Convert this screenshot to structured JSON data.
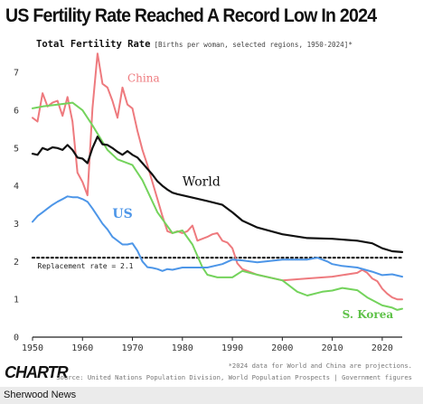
{
  "header": {
    "title": "US Fertility Rate Reached A Record Low In 2024",
    "subtitle": "Total Fertility Rate",
    "subtitle_detail": "[Births per woman, selected regions, 1950-2024]*"
  },
  "footer": {
    "logo": "CHARTR",
    "footnote": "*2024 data for World and China are projections.",
    "source": "Source: United Nations Population Division, World Population Prospects | Government figures",
    "publisher": "Sherwood News"
  },
  "chart_data": {
    "type": "line",
    "title": "US Fertility Rate Reached A Record Low In 2024",
    "xlabel": "",
    "ylabel": "",
    "xlim": [
      1950,
      2024
    ],
    "ylim": [
      0,
      7.6
    ],
    "x_ticks": [
      1950,
      1960,
      1970,
      1980,
      1990,
      2000,
      2010,
      2020
    ],
    "y_ticks": [
      0,
      1,
      2,
      3,
      4,
      5,
      6,
      7
    ],
    "grid": false,
    "reference_line": {
      "label": "Replacement rate = 2.1",
      "value": 2.1
    },
    "series": [
      {
        "name": "China",
        "color": "#ee7a7e",
        "x": [
          1950,
          1951,
          1952,
          1953,
          1954,
          1955,
          1956,
          1957,
          1958,
          1959,
          1960,
          1961,
          1962,
          1963,
          1964,
          1965,
          1966,
          1967,
          1968,
          1969,
          1970,
          1971,
          1972,
          1973,
          1974,
          1975,
          1976,
          1977,
          1978,
          1979,
          1980,
          1981,
          1982,
          1983,
          1984,
          1985,
          1986,
          1987,
          1988,
          1989,
          1990,
          1991,
          1992,
          1993,
          1994,
          1995,
          2000,
          2005,
          2010,
          2015,
          2016,
          2017,
          2018,
          2019,
          2020,
          2021,
          2022,
          2023,
          2024
        ],
        "values": [
          5.8,
          5.7,
          6.45,
          6.1,
          6.2,
          6.25,
          5.85,
          6.35,
          5.7,
          4.35,
          4.1,
          3.75,
          6.05,
          7.5,
          6.7,
          6.6,
          6.25,
          5.8,
          6.6,
          6.15,
          6.05,
          5.45,
          4.95,
          4.55,
          4.1,
          3.65,
          3.2,
          2.8,
          2.75,
          2.8,
          2.75,
          2.8,
          2.95,
          2.55,
          2.6,
          2.65,
          2.72,
          2.75,
          2.55,
          2.5,
          2.35,
          1.95,
          1.8,
          1.75,
          1.7,
          1.65,
          1.5,
          1.55,
          1.6,
          1.7,
          1.78,
          1.7,
          1.55,
          1.48,
          1.28,
          1.15,
          1.05,
          1.0,
          1.0
        ]
      },
      {
        "name": "World",
        "color": "#111111",
        "x": [
          1950,
          1951,
          1952,
          1953,
          1954,
          1955,
          1956,
          1957,
          1958,
          1959,
          1960,
          1961,
          1962,
          1963,
          1964,
          1965,
          1966,
          1967,
          1968,
          1969,
          1970,
          1971,
          1972,
          1973,
          1974,
          1975,
          1976,
          1977,
          1978,
          1979,
          1980,
          1985,
          1988,
          1990,
          1992,
          1995,
          2000,
          2005,
          2010,
          2015,
          2018,
          2020,
          2022,
          2024
        ],
        "values": [
          4.85,
          4.82,
          5.0,
          4.95,
          5.02,
          5.0,
          4.95,
          5.08,
          4.95,
          4.75,
          4.72,
          4.6,
          5.0,
          5.3,
          5.1,
          5.08,
          5.0,
          4.9,
          4.82,
          4.92,
          4.82,
          4.75,
          4.6,
          4.45,
          4.3,
          4.12,
          4.0,
          3.9,
          3.82,
          3.78,
          3.75,
          3.6,
          3.5,
          3.3,
          3.08,
          2.9,
          2.72,
          2.62,
          2.6,
          2.55,
          2.48,
          2.35,
          2.27,
          2.25
        ]
      },
      {
        "name": "US",
        "color": "#4d96e8",
        "x": [
          1950,
          1951,
          1952,
          1953,
          1954,
          1955,
          1956,
          1957,
          1958,
          1959,
          1960,
          1961,
          1962,
          1963,
          1964,
          1965,
          1966,
          1967,
          1968,
          1969,
          1970,
          1971,
          1972,
          1973,
          1974,
          1975,
          1976,
          1977,
          1978,
          1980,
          1985,
          1988,
          1990,
          1992,
          1995,
          2000,
          2005,
          2007,
          2009,
          2010,
          2012,
          2015,
          2018,
          2020,
          2022,
          2024
        ],
        "values": [
          3.05,
          3.2,
          3.3,
          3.4,
          3.5,
          3.58,
          3.65,
          3.72,
          3.7,
          3.7,
          3.65,
          3.58,
          3.4,
          3.2,
          3.0,
          2.85,
          2.65,
          2.55,
          2.45,
          2.45,
          2.48,
          2.28,
          2.0,
          1.85,
          1.83,
          1.8,
          1.75,
          1.8,
          1.78,
          1.84,
          1.84,
          1.93,
          2.05,
          2.03,
          1.98,
          2.05,
          2.05,
          2.1,
          2.0,
          1.93,
          1.88,
          1.84,
          1.73,
          1.64,
          1.66,
          1.6
        ]
      },
      {
        "name": "S. Korea",
        "color": "#74d35c",
        "x": [
          1950,
          1952,
          1955,
          1958,
          1960,
          1962,
          1965,
          1967,
          1970,
          1972,
          1975,
          1978,
          1980,
          1982,
          1984,
          1985,
          1987,
          1990,
          1992,
          1995,
          2000,
          2003,
          2005,
          2008,
          2010,
          2012,
          2015,
          2017,
          2018,
          2020,
          2022,
          2023,
          2024
        ],
        "values": [
          6.05,
          6.1,
          6.15,
          6.2,
          6.0,
          5.6,
          4.95,
          4.7,
          4.55,
          4.15,
          3.3,
          2.75,
          2.82,
          2.45,
          1.85,
          1.65,
          1.58,
          1.58,
          1.75,
          1.65,
          1.5,
          1.2,
          1.1,
          1.2,
          1.23,
          1.3,
          1.24,
          1.05,
          0.98,
          0.84,
          0.78,
          0.72,
          0.75
        ]
      }
    ]
  }
}
